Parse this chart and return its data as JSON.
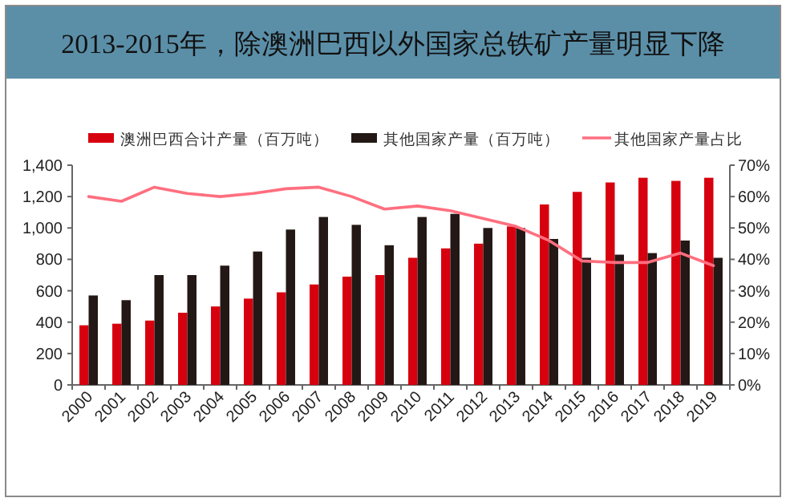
{
  "chart_data": {
    "type": "bar",
    "title": "2013-2015年，除澳洲巴西以外国家总铁矿产量明显下降",
    "categories": [
      "2000",
      "2001",
      "2002",
      "2003",
      "2004",
      "2005",
      "2006",
      "2007",
      "2008",
      "2009",
      "2010",
      "2011",
      "2012",
      "2013",
      "2014",
      "2015",
      "2016",
      "2017",
      "2018",
      "2019"
    ],
    "series": [
      {
        "name": "澳洲巴西合计产量（百万吨）",
        "color": "#d7000f",
        "values": [
          380,
          390,
          410,
          460,
          500,
          550,
          590,
          640,
          690,
          700,
          810,
          870,
          900,
          1010,
          1150,
          1230,
          1290,
          1320,
          1300,
          1320
        ]
      },
      {
        "name": "其他国家产量（百万吨）",
        "color": "#231815",
        "values": [
          570,
          540,
          700,
          700,
          760,
          850,
          990,
          1070,
          1020,
          890,
          1070,
          1090,
          1000,
          1000,
          930,
          810,
          830,
          840,
          920,
          810
        ]
      },
      {
        "name": "其他国家产量占比",
        "type": "line",
        "axis": "y2",
        "color": "#ff6f7f",
        "values": [
          60,
          58.5,
          63,
          61,
          60,
          61,
          62.5,
          63,
          60,
          56,
          57,
          55.5,
          53,
          50.5,
          46,
          39.5,
          39,
          39,
          42,
          38
        ]
      }
    ],
    "ylim": [
      0,
      1400
    ],
    "yticks": [
      0,
      200,
      400,
      600,
      800,
      {
        "value": 1000,
        "label": "1,000"
      },
      {
        "value": 1200,
        "label": "1,200"
      },
      {
        "value": 1400,
        "label": "1,400"
      }
    ],
    "y2lim": [
      0,
      70
    ],
    "y2ticks": [
      {
        "value": 0,
        "label": "0%"
      },
      {
        "value": 10,
        "label": "10%"
      },
      {
        "value": 20,
        "label": "20%"
      },
      {
        "value": 30,
        "label": "30%"
      },
      {
        "value": 40,
        "label": "40%"
      },
      {
        "value": 50,
        "label": "50%"
      },
      {
        "value": 60,
        "label": "60%"
      },
      {
        "value": 70,
        "label": "70%"
      }
    ],
    "grid": false,
    "legend": "top",
    "marker": "none"
  }
}
